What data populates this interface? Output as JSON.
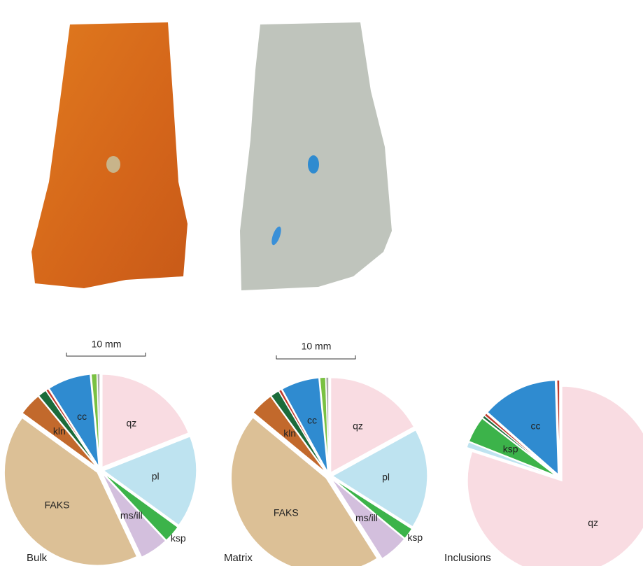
{
  "scale_bars": [
    "10 mm",
    "10 mm"
  ],
  "chart_data": [
    {
      "type": "pie",
      "title": "Bulk",
      "categories": [
        "qz",
        "pl",
        "ksp",
        "ms/ill",
        "FAKS",
        "kln",
        null,
        null,
        "cc",
        null,
        null
      ],
      "values": [
        19,
        16,
        3,
        5,
        42,
        4,
        1.5,
        0.5,
        7.5,
        1,
        0.5
      ],
      "colors": [
        "#f9dce2",
        "#bee3f0",
        "#3cb34a",
        "#d3bfdd",
        "#dcc096",
        "#c2692c",
        "#1b6b3a",
        "#c0392b",
        "#2f8bd0",
        "#7ac143",
        "#aaaaaa"
      ]
    },
    {
      "type": "pie",
      "title": "Matrix",
      "categories": [
        "qz",
        "pl",
        "ksp",
        "ms/ill",
        "FAKS",
        "kln",
        null,
        null,
        "cc",
        null,
        null
      ],
      "values": [
        17,
        17,
        2,
        5,
        45,
        4,
        1.5,
        0.5,
        6.5,
        1,
        0.5
      ],
      "colors": [
        "#f9dce2",
        "#bee3f0",
        "#3cb34a",
        "#d3bfdd",
        "#dcc096",
        "#c2692c",
        "#1b6b3a",
        "#c0392b",
        "#2f8bd0",
        "#7ac143",
        "#aaaaaa"
      ]
    },
    {
      "type": "pie",
      "title": "Inclusions",
      "categories": [
        "qz",
        null,
        "ksp",
        null,
        null,
        "cc",
        null
      ],
      "values": [
        80,
        1,
        4.5,
        0.5,
        0.5,
        13,
        0.5
      ],
      "colors": [
        "#f9dce2",
        "#bee3f0",
        "#3cb34a",
        "#1b6b3a",
        "#c0392b",
        "#2f8bd0",
        "#c0392b"
      ]
    }
  ]
}
